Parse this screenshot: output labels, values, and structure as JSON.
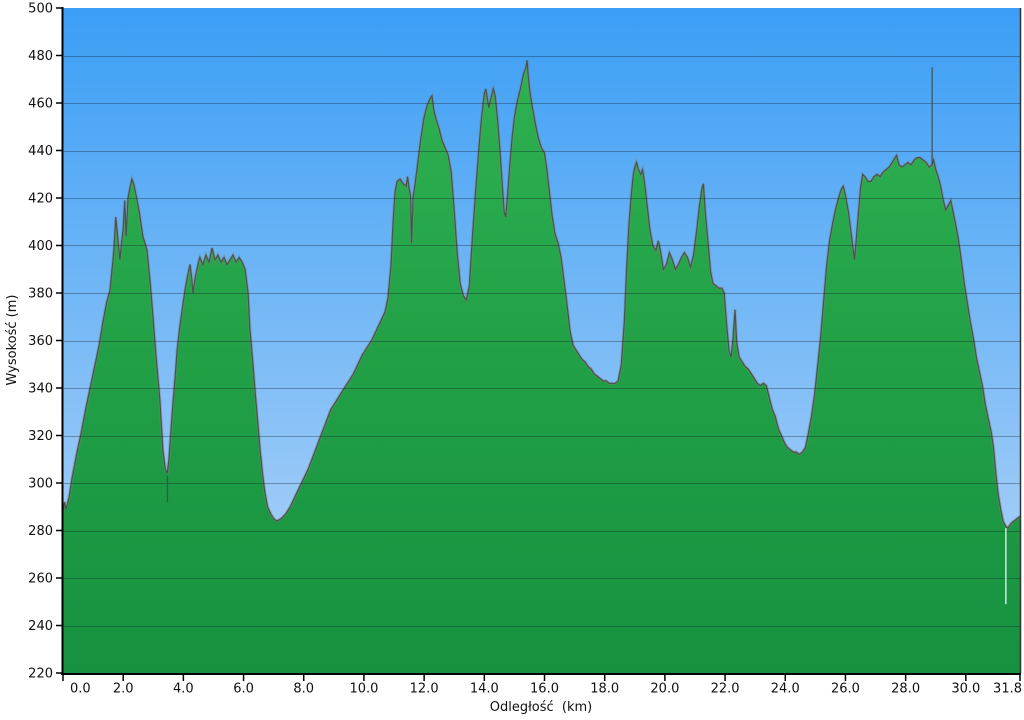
{
  "chart_data": {
    "type": "area",
    "title": "",
    "xlabel": "Odległość  (km)",
    "ylabel": "Wysokość (m)",
    "xlim": [
      0,
      31.8
    ],
    "ylim": [
      220,
      500
    ],
    "grid": "horizontal",
    "legend": "none",
    "x_ticks": [
      0,
      2,
      4,
      6,
      8,
      10,
      12,
      14,
      16,
      18,
      20,
      22,
      24,
      26,
      28,
      30,
      31.8
    ],
    "x_tick_labels": [
      "0.0",
      "2.0",
      "4.0",
      "6.0",
      "8.0",
      "10.0",
      "12.0",
      "14.0",
      "16.0",
      "18.0",
      "20.0",
      "22.0",
      "24.0",
      "26.0",
      "28.0",
      "30.0",
      "31.8"
    ],
    "y_ticks": [
      220,
      240,
      260,
      280,
      300,
      320,
      340,
      360,
      380,
      400,
      420,
      440,
      460,
      480,
      500
    ],
    "colors": {
      "sky_top": "#3b9ef5",
      "sky_bottom": "#bad8f8",
      "terrain_top": "#31b554",
      "terrain_mid": "#22a147",
      "terrain_bottom": "#179140",
      "outline": "rgba(70,75,70,0.9)",
      "outline_fuzz": "rgba(125,130,125,0.45)",
      "gridline": "rgba(20,30,40,0.35)",
      "axis": "#000000",
      "text": "#111111",
      "light_spike": "#eef2f7"
    },
    "series_name": "elevation-profile",
    "profile": [
      [
        0.0,
        288
      ],
      [
        0.05,
        292
      ],
      [
        0.1,
        289
      ],
      [
        0.2,
        294
      ],
      [
        0.3,
        302
      ],
      [
        0.45,
        312
      ],
      [
        0.6,
        321
      ],
      [
        0.75,
        331
      ],
      [
        0.9,
        340
      ],
      [
        1.0,
        346
      ],
      [
        1.1,
        352
      ],
      [
        1.2,
        358
      ],
      [
        1.33,
        368
      ],
      [
        1.45,
        376
      ],
      [
        1.56,
        381
      ],
      [
        1.66,
        394
      ],
      [
        1.7,
        400
      ],
      [
        1.75,
        412
      ],
      [
        1.8,
        406
      ],
      [
        1.89,
        394
      ],
      [
        1.95,
        402
      ],
      [
        2.0,
        407
      ],
      [
        2.05,
        419
      ],
      [
        2.1,
        404
      ],
      [
        2.16,
        420
      ],
      [
        2.22,
        424
      ],
      [
        2.29,
        428
      ],
      [
        2.35,
        426
      ],
      [
        2.45,
        420
      ],
      [
        2.55,
        413
      ],
      [
        2.65,
        404
      ],
      [
        2.79,
        398
      ],
      [
        2.9,
        384
      ],
      [
        2.99,
        370
      ],
      [
        3.1,
        352
      ],
      [
        3.22,
        335
      ],
      [
        3.32,
        314
      ],
      [
        3.4,
        306
      ],
      [
        3.46,
        304
      ],
      [
        3.52,
        310
      ],
      [
        3.62,
        328
      ],
      [
        3.72,
        344
      ],
      [
        3.79,
        356
      ],
      [
        3.88,
        366
      ],
      [
        3.96,
        373
      ],
      [
        4.05,
        381
      ],
      [
        4.12,
        386
      ],
      [
        4.22,
        392
      ],
      [
        4.28,
        386
      ],
      [
        4.32,
        380
      ],
      [
        4.4,
        387
      ],
      [
        4.5,
        393
      ],
      [
        4.55,
        395
      ],
      [
        4.65,
        392
      ],
      [
        4.75,
        396
      ],
      [
        4.85,
        393
      ],
      [
        4.95,
        399
      ],
      [
        5.05,
        394
      ],
      [
        5.15,
        396
      ],
      [
        5.25,
        393
      ],
      [
        5.35,
        395
      ],
      [
        5.45,
        392
      ],
      [
        5.55,
        394
      ],
      [
        5.65,
        396
      ],
      [
        5.75,
        393
      ],
      [
        5.85,
        395
      ],
      [
        5.95,
        393
      ],
      [
        6.05,
        390
      ],
      [
        6.15,
        380
      ],
      [
        6.21,
        365
      ],
      [
        6.3,
        352
      ],
      [
        6.38,
        339
      ],
      [
        6.47,
        326
      ],
      [
        6.55,
        314
      ],
      [
        6.64,
        303
      ],
      [
        6.71,
        296
      ],
      [
        6.8,
        290
      ],
      [
        6.9,
        287
      ],
      [
        7.0,
        285
      ],
      [
        7.1,
        284
      ],
      [
        7.25,
        285
      ],
      [
        7.4,
        287
      ],
      [
        7.55,
        290
      ],
      [
        7.7,
        294
      ],
      [
        7.85,
        298
      ],
      [
        8.0,
        302
      ],
      [
        8.15,
        306
      ],
      [
        8.3,
        311
      ],
      [
        8.45,
        316
      ],
      [
        8.6,
        321
      ],
      [
        8.75,
        326
      ],
      [
        8.9,
        331
      ],
      [
        9.05,
        334
      ],
      [
        9.2,
        337
      ],
      [
        9.35,
        340
      ],
      [
        9.5,
        343
      ],
      [
        9.65,
        346
      ],
      [
        9.8,
        350
      ],
      [
        9.95,
        354
      ],
      [
        10.1,
        357
      ],
      [
        10.25,
        360
      ],
      [
        10.4,
        364
      ],
      [
        10.55,
        368
      ],
      [
        10.7,
        372
      ],
      [
        10.8,
        378
      ],
      [
        10.9,
        392
      ],
      [
        10.97,
        410
      ],
      [
        11.03,
        422
      ],
      [
        11.1,
        427
      ],
      [
        11.2,
        428
      ],
      [
        11.3,
        426
      ],
      [
        11.4,
        425
      ],
      [
        11.45,
        429
      ],
      [
        11.5,
        424
      ],
      [
        11.55,
        421
      ],
      [
        11.58,
        401
      ],
      [
        11.63,
        420
      ],
      [
        11.7,
        426
      ],
      [
        11.8,
        436
      ],
      [
        11.9,
        446
      ],
      [
        12.0,
        454
      ],
      [
        12.1,
        459
      ],
      [
        12.2,
        462
      ],
      [
        12.26,
        463
      ],
      [
        12.32,
        457
      ],
      [
        12.4,
        453
      ],
      [
        12.5,
        449
      ],
      [
        12.6,
        444
      ],
      [
        12.7,
        441
      ],
      [
        12.8,
        438
      ],
      [
        12.9,
        431
      ],
      [
        13.0,
        415
      ],
      [
        13.1,
        397
      ],
      [
        13.2,
        384
      ],
      [
        13.3,
        379
      ],
      [
        13.4,
        377
      ],
      [
        13.5,
        383
      ],
      [
        13.6,
        403
      ],
      [
        13.7,
        421
      ],
      [
        13.8,
        438
      ],
      [
        13.9,
        453
      ],
      [
        14.0,
        464
      ],
      [
        14.05,
        466
      ],
      [
        14.1,
        462
      ],
      [
        14.15,
        458
      ],
      [
        14.22,
        462
      ],
      [
        14.3,
        466
      ],
      [
        14.36,
        463
      ],
      [
        14.44,
        453
      ],
      [
        14.52,
        440
      ],
      [
        14.6,
        425
      ],
      [
        14.66,
        414
      ],
      [
        14.71,
        412
      ],
      [
        14.77,
        421
      ],
      [
        14.84,
        433
      ],
      [
        14.92,
        445
      ],
      [
        15.0,
        454
      ],
      [
        15.1,
        461
      ],
      [
        15.2,
        466
      ],
      [
        15.3,
        472
      ],
      [
        15.38,
        475
      ],
      [
        15.42,
        478
      ],
      [
        15.46,
        471
      ],
      [
        15.52,
        464
      ],
      [
        15.6,
        458
      ],
      [
        15.7,
        451
      ],
      [
        15.8,
        445
      ],
      [
        15.9,
        441
      ],
      [
        16.0,
        439
      ],
      [
        16.08,
        432
      ],
      [
        16.16,
        423
      ],
      [
        16.25,
        413
      ],
      [
        16.35,
        405
      ],
      [
        16.45,
        401
      ],
      [
        16.55,
        395
      ],
      [
        16.65,
        385
      ],
      [
        16.75,
        375
      ],
      [
        16.85,
        364
      ],
      [
        16.95,
        358
      ],
      [
        17.05,
        356
      ],
      [
        17.15,
        354
      ],
      [
        17.25,
        352
      ],
      [
        17.35,
        351
      ],
      [
        17.45,
        349
      ],
      [
        17.55,
        348
      ],
      [
        17.65,
        346
      ],
      [
        17.75,
        345
      ],
      [
        17.85,
        344
      ],
      [
        17.95,
        343
      ],
      [
        18.05,
        343
      ],
      [
        18.15,
        342
      ],
      [
        18.25,
        342
      ],
      [
        18.35,
        342
      ],
      [
        18.45,
        343
      ],
      [
        18.55,
        350
      ],
      [
        18.65,
        368
      ],
      [
        18.73,
        391
      ],
      [
        18.8,
        408
      ],
      [
        18.88,
        421
      ],
      [
        18.95,
        430
      ],
      [
        19.0,
        433
      ],
      [
        19.06,
        435
      ],
      [
        19.12,
        432
      ],
      [
        19.2,
        430
      ],
      [
        19.26,
        432
      ],
      [
        19.33,
        426
      ],
      [
        19.42,
        416
      ],
      [
        19.5,
        407
      ],
      [
        19.6,
        400
      ],
      [
        19.7,
        398
      ],
      [
        19.78,
        402
      ],
      [
        19.85,
        398
      ],
      [
        19.95,
        390
      ],
      [
        20.05,
        392
      ],
      [
        20.15,
        397
      ],
      [
        20.25,
        394
      ],
      [
        20.35,
        390
      ],
      [
        20.45,
        392
      ],
      [
        20.55,
        395
      ],
      [
        20.65,
        397
      ],
      [
        20.75,
        395
      ],
      [
        20.85,
        391
      ],
      [
        20.95,
        396
      ],
      [
        21.05,
        406
      ],
      [
        21.15,
        417
      ],
      [
        21.23,
        424
      ],
      [
        21.28,
        426
      ],
      [
        21.35,
        413
      ],
      [
        21.43,
        402
      ],
      [
        21.52,
        389
      ],
      [
        21.6,
        384
      ],
      [
        21.7,
        383
      ],
      [
        21.8,
        382
      ],
      [
        21.9,
        382
      ],
      [
        21.97,
        380
      ],
      [
        22.05,
        367
      ],
      [
        22.13,
        356
      ],
      [
        22.2,
        353
      ],
      [
        22.27,
        362
      ],
      [
        22.33,
        373
      ],
      [
        22.39,
        359
      ],
      [
        22.47,
        353
      ],
      [
        22.57,
        351
      ],
      [
        22.67,
        349
      ],
      [
        22.77,
        348
      ],
      [
        22.87,
        346
      ],
      [
        22.97,
        344
      ],
      [
        23.07,
        342
      ],
      [
        23.17,
        341
      ],
      [
        23.27,
        342
      ],
      [
        23.37,
        341
      ],
      [
        23.47,
        336
      ],
      [
        23.57,
        331
      ],
      [
        23.67,
        328
      ],
      [
        23.77,
        323
      ],
      [
        23.87,
        320
      ],
      [
        23.97,
        317
      ],
      [
        24.07,
        315
      ],
      [
        24.17,
        314
      ],
      [
        24.27,
        313
      ],
      [
        24.37,
        313
      ],
      [
        24.47,
        312
      ],
      [
        24.57,
        313
      ],
      [
        24.67,
        315
      ],
      [
        24.77,
        321
      ],
      [
        24.87,
        328
      ],
      [
        24.97,
        337
      ],
      [
        25.07,
        349
      ],
      [
        25.17,
        361
      ],
      [
        25.27,
        376
      ],
      [
        25.37,
        391
      ],
      [
        25.47,
        402
      ],
      [
        25.57,
        409
      ],
      [
        25.67,
        415
      ],
      [
        25.77,
        420
      ],
      [
        25.87,
        424
      ],
      [
        25.93,
        425
      ],
      [
        26.0,
        421
      ],
      [
        26.1,
        414
      ],
      [
        26.2,
        404
      ],
      [
        26.3,
        394
      ],
      [
        26.4,
        409
      ],
      [
        26.5,
        424
      ],
      [
        26.57,
        430
      ],
      [
        26.65,
        429
      ],
      [
        26.75,
        427
      ],
      [
        26.85,
        427
      ],
      [
        26.95,
        429
      ],
      [
        27.05,
        430
      ],
      [
        27.15,
        429
      ],
      [
        27.25,
        431
      ],
      [
        27.35,
        432
      ],
      [
        27.45,
        433
      ],
      [
        27.55,
        435
      ],
      [
        27.65,
        437
      ],
      [
        27.7,
        438
      ],
      [
        27.78,
        434
      ],
      [
        27.88,
        433
      ],
      [
        27.98,
        434
      ],
      [
        28.08,
        435
      ],
      [
        28.18,
        434
      ],
      [
        28.28,
        436
      ],
      [
        28.38,
        437
      ],
      [
        28.48,
        437
      ],
      [
        28.58,
        436
      ],
      [
        28.68,
        435
      ],
      [
        28.78,
        433
      ],
      [
        28.87,
        434
      ],
      [
        28.93,
        436
      ],
      [
        29.0,
        432
      ],
      [
        29.08,
        429
      ],
      [
        29.16,
        425
      ],
      [
        29.25,
        419
      ],
      [
        29.33,
        415
      ],
      [
        29.42,
        417
      ],
      [
        29.5,
        419
      ],
      [
        29.58,
        414
      ],
      [
        29.66,
        409
      ],
      [
        29.75,
        403
      ],
      [
        29.85,
        394
      ],
      [
        29.95,
        384
      ],
      [
        30.05,
        376
      ],
      [
        30.15,
        368
      ],
      [
        30.25,
        361
      ],
      [
        30.35,
        353
      ],
      [
        30.45,
        347
      ],
      [
        30.55,
        341
      ],
      [
        30.65,
        333
      ],
      [
        30.75,
        327
      ],
      [
        30.85,
        321
      ],
      [
        30.92,
        315
      ],
      [
        31.0,
        304
      ],
      [
        31.08,
        295
      ],
      [
        31.16,
        289
      ],
      [
        31.24,
        284
      ],
      [
        31.32,
        282
      ],
      [
        31.4,
        281
      ],
      [
        31.5,
        283
      ],
      [
        31.6,
        284
      ],
      [
        31.7,
        285
      ],
      [
        31.8,
        286
      ]
    ],
    "spikes": [
      {
        "km": 3.47,
        "from": 303,
        "to": 292,
        "shade": "dark"
      },
      {
        "km": 28.88,
        "from": 434,
        "to": 475,
        "shade": "dark"
      },
      {
        "km": 31.33,
        "from": 281,
        "to": 249,
        "shade": "light"
      }
    ]
  }
}
